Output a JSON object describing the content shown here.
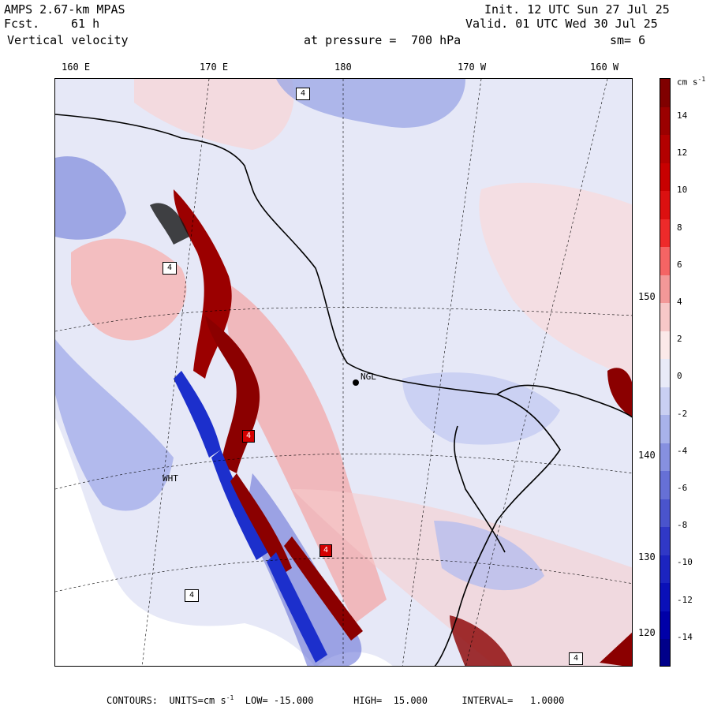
{
  "header": {
    "model": "AMPS 2.67-km MPAS",
    "fcst_label": "Fcst.",
    "fcst_value": "61 h",
    "field": "Vertical velocity",
    "pressure_label": "at pressure =",
    "pressure_value": "700 hPa",
    "init": "Init. 12 UTC Sun 27 Jul 25",
    "valid": "Valid. 01 UTC Wed 30 Jul 25",
    "smoothing": "sm= 6"
  },
  "map": {
    "longitude_labels": [
      "160 E",
      "170 E",
      "180",
      "170 W",
      "160 W"
    ],
    "latitude_labels": [
      "150 W",
      "140 W",
      "130 W",
      "120 W"
    ],
    "stations": [
      "NGL",
      "WHT"
    ],
    "extrema_label": "4",
    "colors": {
      "strong_positive": "#8b0000",
      "positive": "#f6b8b8",
      "near_zero": "#eaeaf8",
      "negative": "#aab4ea",
      "strong_negative": "#1c2fcc",
      "land": "#ffffff"
    }
  },
  "colorbar": {
    "units": "cm s",
    "units_exp": "-1",
    "ticks": [
      "14",
      "12",
      "10",
      "8",
      "6",
      "4",
      "2",
      "0",
      "-2",
      "-4",
      "-6",
      "-8",
      "-10",
      "-12",
      "-14"
    ],
    "colors": [
      "#800000",
      "#9b0000",
      "#b30000",
      "#c80000",
      "#dc1010",
      "#ee2a2a",
      "#f56464",
      "#f39898",
      "#f7c8c8",
      "#fbe9e9",
      "#e8eaf8",
      "#c9cff2",
      "#a8b2ea",
      "#8690e0",
      "#6670d6",
      "#4a54cc",
      "#3038c6",
      "#1c24c0",
      "#0a10b8",
      "#0000a8",
      "#00008a"
    ]
  },
  "footer": {
    "text": "CONTOURS:  UNITS=cm s",
    "exp": "-1",
    "rest": "  LOW= -15.000       HIGH=  15.000      INTERVAL=   1.0000"
  }
}
